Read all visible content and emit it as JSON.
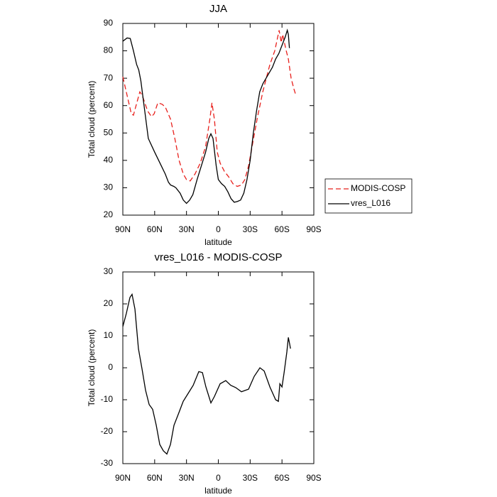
{
  "chart_data": [
    {
      "type": "line",
      "title": "JJA",
      "xlabel": "latitude",
      "ylabel": "Total cloud (percent)",
      "xlim": [
        90,
        -90
      ],
      "ylim": [
        20,
        90
      ],
      "xticks": [
        {
          "value": 90,
          "label": "90N"
        },
        {
          "value": 60,
          "label": "60N"
        },
        {
          "value": 30,
          "label": "30N"
        },
        0,
        {
          "value": -30,
          "label": "30S"
        },
        {
          "value": -60,
          "label": "60S"
        },
        {
          "value": -90,
          "label": "90S"
        }
      ],
      "yticks": [
        20,
        30,
        40,
        50,
        60,
        70,
        80,
        90
      ],
      "legend": "right",
      "series": [
        {
          "name": "MODIS-COSP",
          "color": "#e8201c",
          "linestyle": "dashed",
          "x": [
            90,
            82,
            80,
            74,
            72,
            66.6,
            63,
            60.5,
            57,
            53,
            50,
            45,
            41,
            37,
            33,
            30,
            26.5,
            22,
            17,
            12,
            8,
            6,
            3.7,
            1,
            -1.7,
            -5.7,
            -9.7,
            -13.7,
            -17.8,
            -21.8,
            -25,
            -28.5,
            -31.8,
            -36.5,
            -41.9,
            -45.2,
            -48.6,
            -53.2,
            -57.3,
            -59.3,
            -60.6,
            -64,
            -66,
            -68.6,
            -71.3,
            -73.3
          ],
          "values": [
            70.5,
            57,
            56.5,
            65,
            64,
            58,
            56,
            57,
            61,
            60.5,
            59.5,
            55,
            48,
            40,
            35,
            33,
            32.5,
            35,
            39,
            45,
            55,
            61,
            55,
            43,
            39,
            36,
            34,
            31.5,
            30.5,
            31,
            33,
            38,
            45,
            55,
            65,
            70,
            75,
            80,
            87.5,
            83,
            86,
            80,
            77,
            70,
            66,
            63.5
          ]
        },
        {
          "name": "vres_L016",
          "color": "#000000",
          "linestyle": "solid",
          "x": [
            90,
            86,
            83,
            80,
            77,
            75,
            73,
            70,
            66,
            60,
            55,
            50,
            47,
            45,
            42,
            40,
            36,
            33,
            30,
            27,
            24,
            20,
            16,
            12,
            9,
            7,
            5,
            2,
            0,
            -3,
            -6,
            -9,
            -12,
            -15,
            -18,
            -21,
            -24,
            -27,
            -30,
            -33,
            -36,
            -39,
            -42,
            -45,
            -48,
            -51,
            -54,
            -57,
            -60,
            -63,
            -65,
            -66,
            -67
          ],
          "values": [
            83.5,
            84.7,
            84.5,
            80,
            75,
            73,
            69,
            60,
            48,
            43,
            39,
            35,
            32,
            31,
            30.5,
            30,
            28,
            25.5,
            24.3,
            25.5,
            27.5,
            33,
            38,
            43,
            48,
            49.7,
            48,
            38,
            33,
            31.5,
            30.5,
            28.5,
            26,
            24.7,
            25,
            25.5,
            28,
            33,
            40,
            50,
            58,
            65,
            68,
            70,
            72,
            74,
            77,
            79,
            82,
            85,
            87.5,
            86,
            81
          ]
        }
      ]
    },
    {
      "type": "line",
      "title": "vres_L016 - MODIS-COSP",
      "xlabel": "latitude",
      "ylabel": "Total cloud (percent)",
      "xlim": [
        90,
        -90
      ],
      "ylim": [
        -30,
        30
      ],
      "xticks": [
        {
          "value": 90,
          "label": "90N"
        },
        {
          "value": 60,
          "label": "60N"
        },
        {
          "value": 30,
          "label": "30N"
        },
        0,
        {
          "value": -30,
          "label": "30S"
        },
        {
          "value": -60,
          "label": "60S"
        },
        {
          "value": -90,
          "label": "90S"
        }
      ],
      "yticks": [
        -30,
        -20,
        -10,
        0,
        10,
        20,
        30
      ],
      "series": [
        {
          "color": "#000000",
          "linestyle": "solid",
          "x": [
            90,
            86.7,
            83.3,
            81.3,
            78.6,
            75.3,
            71.9,
            68.6,
            65.2,
            61.9,
            58.5,
            55.2,
            51.8,
            48.5,
            45.1,
            41.8,
            37.1,
            33.1,
            28.4,
            23.7,
            18.4,
            15,
            11.7,
            7,
            3.7,
            -1.7,
            -7,
            -11.7,
            -16.4,
            -21.8,
            -28.5,
            -33.8,
            -39.2,
            -43.2,
            -48.6,
            -54,
            -56.6,
            -58,
            -60,
            -62,
            -64.6,
            -66,
            -67.3,
            -68
          ],
          "values": [
            12.9,
            17,
            22,
            23,
            18.4,
            6,
            -0.4,
            -7,
            -11.5,
            -13,
            -18,
            -24,
            -26,
            -27,
            -24,
            -18,
            -14,
            -10.5,
            -8,
            -5.5,
            -1.2,
            -1.5,
            -6,
            -11,
            -9,
            -5,
            -4,
            -5.5,
            -6.2,
            -7.5,
            -6.7,
            -2.7,
            0,
            -1,
            -6,
            -10,
            -10.5,
            -5,
            -6,
            -1.5,
            5,
            9.5,
            7.3,
            6
          ]
        }
      ]
    }
  ]
}
